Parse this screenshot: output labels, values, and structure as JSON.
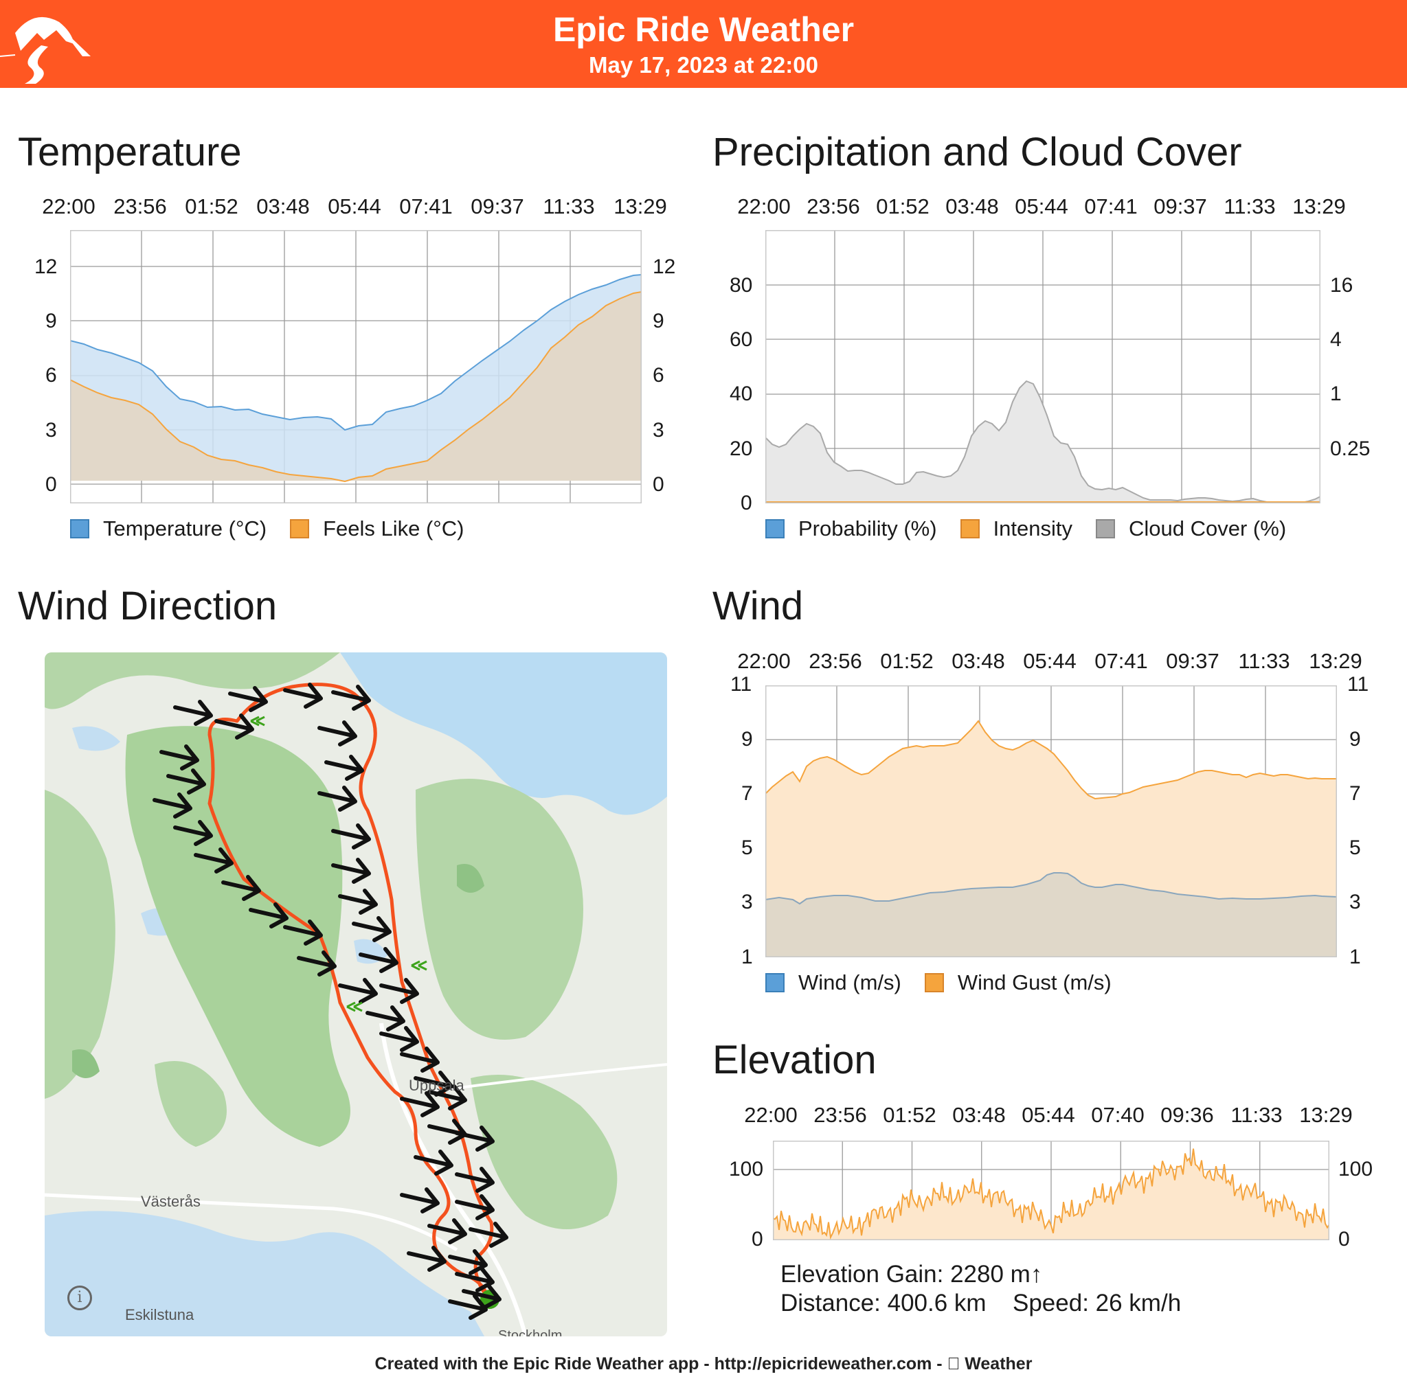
{
  "header": {
    "title": "Epic Ride Weather",
    "date": "May 17, 2023 at 22:00"
  },
  "colors": {
    "header": "#ff5722",
    "route": "#f4511e",
    "temperature": "#5b9fd8",
    "feels_like": "#f5a43d",
    "cloud": "#a9a9a9",
    "wind_gust": "#f5a43d",
    "elevation": "#f5a43d"
  },
  "temperature": {
    "title": "Temperature",
    "times": [
      "22:00",
      "23:56",
      "01:52",
      "03:48",
      "05:44",
      "07:41",
      "09:37",
      "11:33",
      "13:29"
    ],
    "yticks": [
      "12",
      "9",
      "6",
      "3",
      "0"
    ],
    "legend": [
      "Temperature (°C)",
      "Feels Like (°C)"
    ]
  },
  "precip": {
    "title": "Precipitation and Cloud Cover",
    "times": [
      "22:00",
      "23:56",
      "01:52",
      "03:48",
      "05:44",
      "07:41",
      "09:37",
      "11:33",
      "13:29"
    ],
    "yticks_left": [
      "80",
      "60",
      "40",
      "20",
      "0"
    ],
    "yticks_right": [
      "16",
      "4",
      "1",
      "0.25"
    ],
    "legend": [
      "Probability (%)",
      "Intensity",
      "Cloud Cover (%)"
    ]
  },
  "wind": {
    "title": "Wind",
    "times": [
      "22:00",
      "23:56",
      "01:52",
      "03:48",
      "05:44",
      "07:41",
      "09:37",
      "11:33",
      "13:29"
    ],
    "yticks": [
      "11",
      "9",
      "7",
      "5",
      "3",
      "1"
    ],
    "legend": [
      "Wind (m/s)",
      "Wind Gust (m/s)"
    ]
  },
  "wind_direction": {
    "title": "Wind Direction",
    "place_labels": [
      "Västerås",
      "Eskilstuna",
      "Uppsala",
      "Stockholm"
    ],
    "info_icon": "info-icon"
  },
  "elevation": {
    "title": "Elevation",
    "times": [
      "22:00",
      "23:56",
      "01:52",
      "03:48",
      "05:44",
      "07:40",
      "09:36",
      "11:33",
      "13:29"
    ],
    "yticks": [
      "100",
      "0"
    ],
    "gain": "Elevation Gain: 2280 m↑",
    "distance": "Distance: 400.6 km",
    "speed": "Speed: 26 km/h"
  },
  "footer": "Created with the Epic Ride Weather app - http://epicrideweather.com -  Weather",
  "chart_data": [
    {
      "type": "area",
      "title": "Temperature",
      "x": [
        "22:00",
        "23:56",
        "01:52",
        "03:48",
        "05:44",
        "07:41",
        "09:37",
        "11:33",
        "13:29"
      ],
      "ylim": [
        -1,
        14
      ],
      "series": [
        {
          "name": "Temperature (°C)",
          "values": [
            8.0,
            6.8,
            4.3,
            3.6,
            3.2,
            6.0,
            9.5,
            12.0,
            13.3
          ]
        },
        {
          "name": "Feels Like (°C)",
          "values": [
            6.0,
            4.2,
            1.5,
            0.5,
            0.5,
            3.5,
            8.2,
            10.7,
            12.1
          ]
        }
      ]
    },
    {
      "type": "area",
      "title": "Precipitation and Cloud Cover",
      "x": [
        "22:00",
        "23:56",
        "01:52",
        "03:48",
        "05:44",
        "07:41",
        "09:37",
        "11:33",
        "13:29"
      ],
      "ylim": [
        0,
        100
      ],
      "series": [
        {
          "name": "Probability (%)",
          "values": [
            0,
            0,
            0,
            0,
            0,
            0,
            0,
            0,
            0
          ]
        },
        {
          "name": "Intensity",
          "values": [
            0,
            0,
            0,
            0,
            0,
            0,
            0,
            0,
            0
          ]
        },
        {
          "name": "Cloud Cover (%)",
          "values": [
            24,
            12,
            7,
            10,
            42,
            8,
            1,
            2,
            4
          ]
        }
      ]
    },
    {
      "type": "area",
      "title": "Wind",
      "x": [
        "22:00",
        "23:56",
        "01:52",
        "03:48",
        "05:44",
        "07:41",
        "09:37",
        "11:33",
        "13:29"
      ],
      "ylim": [
        1,
        11
      ],
      "series": [
        {
          "name": "Wind (m/s)",
          "values": [
            3.1,
            3.3,
            3.3,
            3.5,
            3.6,
            3.0,
            3.0,
            3.1,
            3.0
          ]
        },
        {
          "name": "Wind Gust (m/s)",
          "values": [
            7.0,
            7.8,
            8.8,
            9.6,
            8.4,
            6.3,
            6.9,
            7.5,
            7.5
          ]
        }
      ]
    },
    {
      "type": "area",
      "title": "Elevation",
      "x": [
        "22:00",
        "23:56",
        "01:52",
        "03:48",
        "05:44",
        "07:40",
        "09:36",
        "11:33",
        "13:29"
      ],
      "ylim": [
        0,
        130
      ],
      "series": [
        {
          "name": "",
          "values": [
            25,
            15,
            55,
            70,
            25,
            75,
            110,
            60,
            25
          ]
        }
      ]
    }
  ]
}
